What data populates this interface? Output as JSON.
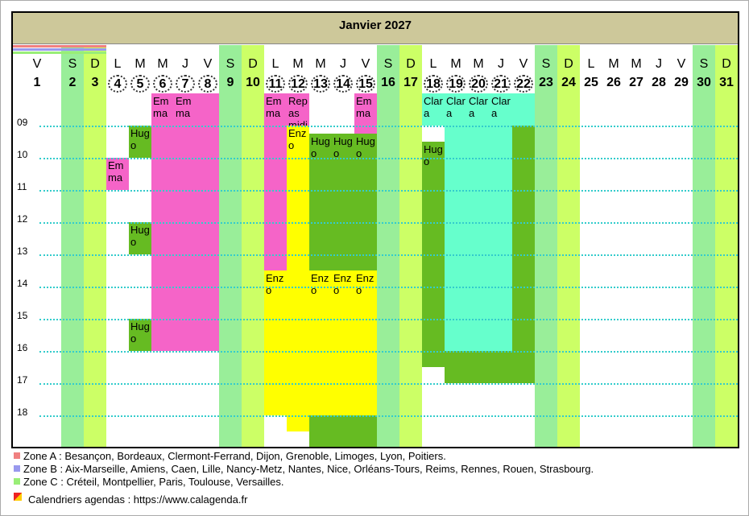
{
  "header": {
    "title": "Janvier 2027"
  },
  "days": [
    {
      "wd": "V",
      "n": 1
    },
    {
      "wd": "S",
      "n": 2,
      "color": "#99ee99"
    },
    {
      "wd": "D",
      "n": 3,
      "color": "#ccff66"
    },
    {
      "wd": "L",
      "n": 4,
      "circled": true
    },
    {
      "wd": "M",
      "n": 5,
      "circled": true
    },
    {
      "wd": "M",
      "n": 6,
      "circled": true
    },
    {
      "wd": "J",
      "n": 7,
      "circled": true
    },
    {
      "wd": "V",
      "n": 8,
      "circled": true
    },
    {
      "wd": "S",
      "n": 9,
      "color": "#99ee99"
    },
    {
      "wd": "D",
      "n": 10,
      "color": "#ccff66"
    },
    {
      "wd": "L",
      "n": 11,
      "circled": true
    },
    {
      "wd": "M",
      "n": 12,
      "circled": true
    },
    {
      "wd": "M",
      "n": 13,
      "circled": true
    },
    {
      "wd": "J",
      "n": 14,
      "circled": true
    },
    {
      "wd": "V",
      "n": 15,
      "circled": true
    },
    {
      "wd": "S",
      "n": 16,
      "color": "#99ee99"
    },
    {
      "wd": "D",
      "n": 17,
      "color": "#ccff66"
    },
    {
      "wd": "L",
      "n": 18,
      "circled": true
    },
    {
      "wd": "M",
      "n": 19,
      "circled": true
    },
    {
      "wd": "M",
      "n": 20,
      "circled": true
    },
    {
      "wd": "J",
      "n": 21,
      "circled": true
    },
    {
      "wd": "V",
      "n": 22,
      "circled": true
    },
    {
      "wd": "S",
      "n": 23,
      "color": "#99ee99"
    },
    {
      "wd": "D",
      "n": 24,
      "color": "#ccff66"
    },
    {
      "wd": "L",
      "n": 25
    },
    {
      "wd": "M",
      "n": 26
    },
    {
      "wd": "M",
      "n": 27
    },
    {
      "wd": "J",
      "n": 28
    },
    {
      "wd": "V",
      "n": 29
    },
    {
      "wd": "S",
      "n": 30,
      "color": "#99ee99"
    },
    {
      "wd": "D",
      "n": 31,
      "color": "#ccff66"
    }
  ],
  "range": [
    8,
    19
  ],
  "hours": [
    {
      "value": 9,
      "label": "09"
    },
    10,
    11,
    12,
    13,
    14,
    15,
    16,
    17,
    18
  ],
  "events": [
    {
      "day": 4,
      "start": 10,
      "end": 11,
      "label": "Emma",
      "color": "#f564c8"
    },
    {
      "day": 5,
      "start": 9,
      "end": 10,
      "label": "Hugo",
      "color": "#66bb22"
    },
    {
      "day": 5,
      "start": 12,
      "end": 13,
      "label": "Hugo",
      "color": "#66bb22"
    },
    {
      "day": 5,
      "start": 15,
      "end": 16,
      "label": "Hugo",
      "color": "#66bb22"
    },
    {
      "day": 6,
      "start": 8,
      "end": 16,
      "label": "Emma",
      "color": "#f564c8"
    },
    {
      "day": 7,
      "start": 8,
      "end": 16,
      "label": "Emma",
      "color": "#f564c8"
    },
    {
      "day": 8,
      "start": 8,
      "end": 16,
      "color": "#f564c8"
    },
    {
      "day": 11,
      "start": 8,
      "end": 13.5,
      "label": "Emma",
      "color": "#f564c8"
    },
    {
      "day": 11,
      "start": 13.5,
      "end": 18,
      "label": "Enzo",
      "color": "#ffff00"
    },
    {
      "day": 12,
      "start": 8,
      "end": 9,
      "label": "Repas midi",
      "color": "#f564c8"
    },
    {
      "day": 12,
      "start": 9,
      "end": 18.5,
      "label": "Enzo",
      "color": "#ffff00"
    },
    {
      "day": 13,
      "start": 9.25,
      "end": 13.5,
      "label": "Hugo",
      "color": "#66bb22"
    },
    {
      "day": 13,
      "start": 13.5,
      "end": 18,
      "label": "Enzo",
      "color": "#ffff00"
    },
    {
      "day": 13,
      "start": 18,
      "end": 19,
      "color": "#66bb22"
    },
    {
      "day": 14,
      "start": 9.25,
      "end": 13.5,
      "label": "Hugo",
      "color": "#66bb22"
    },
    {
      "day": 14,
      "start": 13.5,
      "end": 18,
      "label": "Enzo",
      "color": "#ffff00"
    },
    {
      "day": 14,
      "start": 18,
      "end": 19,
      "color": "#66bb22"
    },
    {
      "day": 15,
      "start": 8,
      "end": 9.25,
      "label": "Emma",
      "color": "#f564c8"
    },
    {
      "day": 15,
      "start": 9.25,
      "end": 13.5,
      "label": "Hugo",
      "color": "#66bb22"
    },
    {
      "day": 15,
      "start": 13.5,
      "end": 18,
      "label": "Enzo",
      "color": "#ffff00"
    },
    {
      "day": 15,
      "start": 18,
      "end": 19,
      "color": "#66bb22"
    },
    {
      "day": 18,
      "start": 8,
      "end": 9,
      "label": "Clara",
      "color": "#66ffcc"
    },
    {
      "day": 18,
      "start": 9.5,
      "end": 16.5,
      "label": "Hugo",
      "color": "#66bb22"
    },
    {
      "day": 19,
      "start": 8,
      "end": 16,
      "label": "Clara",
      "color": "#66ffcc"
    },
    {
      "day": 19,
      "start": 16,
      "end": 17,
      "color": "#66bb22"
    },
    {
      "day": 20,
      "start": 8,
      "end": 16,
      "label": "Clara",
      "color": "#66ffcc"
    },
    {
      "day": 20,
      "start": 16,
      "end": 17,
      "color": "#66bb22"
    },
    {
      "day": 21,
      "start": 8,
      "end": 16,
      "label": "Clara",
      "color": "#66ffcc"
    },
    {
      "day": 21,
      "start": 16,
      "end": 17,
      "color": "#66bb22"
    },
    {
      "day": 22,
      "start": 8,
      "end": 9,
      "color": "#66ffcc"
    },
    {
      "day": 22,
      "start": 9,
      "end": 17,
      "color": "#66bb22"
    }
  ],
  "zones": [
    {
      "label": "Zone A : Besançon, Bordeaux, Clermont-Ferrand, Dijon, Grenoble, Limoges, Lyon, Poitiers.",
      "color": "#f08080"
    },
    {
      "label": "Zone B : Aix-Marseille, Amiens, Caen, Lille, Nancy-Metz, Nantes, Nice, Orléans-Tours, Reims, Rennes, Rouen, Strasbourg.",
      "color": "#9999ee"
    },
    {
      "label": "Zone C : Créteil, Montpellier, Paris, Toulouse, Versailles.",
      "color": "#99ee77"
    }
  ],
  "footer": {
    "text": "Calendriers agendas : https://www.calagenda.fr"
  }
}
